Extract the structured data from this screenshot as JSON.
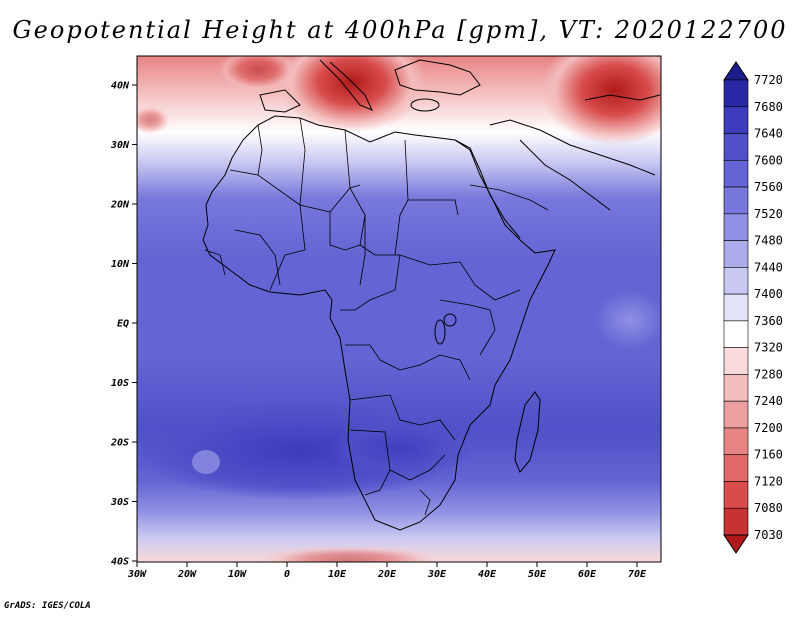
{
  "title": "Geopotential Height at 400hPa [gpm], VT: 2020122700",
  "credit": "GrADS: IGES/COLA",
  "map": {
    "lat_labels": [
      "40N",
      "30N",
      "20N",
      "10N",
      "EQ",
      "10S",
      "20S",
      "30S",
      "40S"
    ],
    "lon_labels": [
      "30W",
      "20W",
      "10W",
      "0",
      "10E",
      "20E",
      "30E",
      "40E",
      "50E",
      "60E",
      "70E"
    ]
  },
  "colorbar": {
    "levels": [
      "7030",
      "7080",
      "7120",
      "7160",
      "7200",
      "7240",
      "7280",
      "7320",
      "7360",
      "7400",
      "7440",
      "7480",
      "7520",
      "7560",
      "7600",
      "7640",
      "7680",
      "7720"
    ],
    "colors": [
      "#b01a1a",
      "#c83232",
      "#d84c4c",
      "#e06868",
      "#e88484",
      "#eea0a0",
      "#f4bcbc",
      "#fadada",
      "#ffffff",
      "#e4e4fa",
      "#c8c8f2",
      "#acaceb",
      "#9090e4",
      "#7878dc",
      "#6464d4",
      "#5050c8",
      "#3c3cbc",
      "#2828a4",
      "#1c1c8c"
    ]
  }
}
